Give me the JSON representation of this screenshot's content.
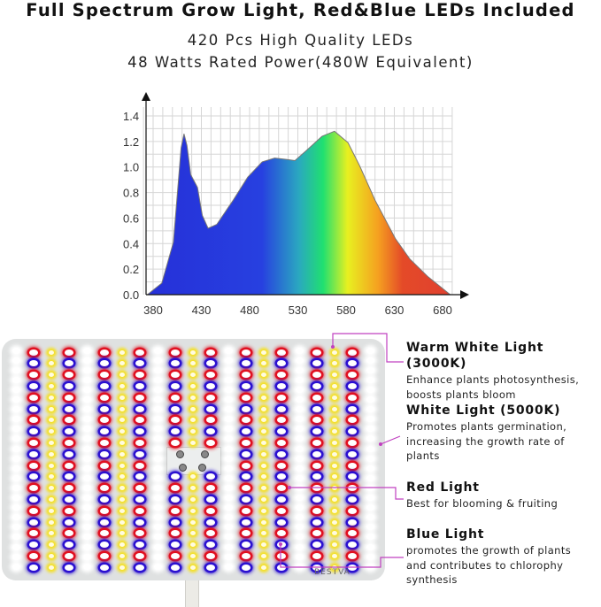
{
  "header": {
    "title": "Full Spectrum Grow Light, Red&Blue LEDs Included",
    "line1": "420 Pcs High Quality LEDs",
    "line2": "48 Watts Rated Power(480W Equivalent)"
  },
  "chart_data": {
    "type": "area",
    "title": "",
    "xlabel": "",
    "ylabel": "",
    "xlim": [
      380,
      680
    ],
    "ylim": [
      0,
      1.4
    ],
    "grid": true,
    "x_ticks": [
      "380",
      "430",
      "480",
      "530",
      "580",
      "630",
      "680"
    ],
    "y_ticks": [
      "0.0",
      "0.2",
      "0.4",
      "0.6",
      "0.8",
      "1.0",
      "1.2",
      "1.4"
    ],
    "fill": "spectrum gradient (blue → cyan → green → yellow → orange → red)",
    "series": [
      {
        "x": [
          374,
          389,
          401,
          409,
          412,
          415,
          419,
          426,
          431,
          437,
          446,
          463,
          478,
          493,
          506,
          518,
          527,
          539,
          555,
          568,
          582,
          594,
          610,
          631,
          646,
          665,
          688
        ],
        "y": [
          0,
          0.09,
          0.41,
          1.15,
          1.26,
          1.17,
          0.94,
          0.84,
          0.62,
          0.52,
          0.55,
          0.74,
          0.92,
          1.04,
          1.07,
          1.06,
          1.05,
          1.13,
          1.24,
          1.28,
          1.19,
          1.01,
          0.74,
          0.44,
          0.28,
          0.14,
          0
        ]
      }
    ]
  },
  "panel": {
    "logo": "BESTVA",
    "led_colors": {
      "red": "#e01020",
      "blue": "#2a10d0",
      "yellow": "#f5e020",
      "white": "#ffffff"
    }
  },
  "labels": [
    {
      "title": "Warm White Light (3000K)",
      "lines": [
        "Enhance plants photosynthesis,",
        "boosts plants bloom"
      ]
    },
    {
      "title": "White Light (5000K)",
      "lines": [
        "Promotes plants germination,",
        "increasing the growth rate of",
        "plants"
      ]
    },
    {
      "title": "Red Light",
      "lines": [
        "Best for blooming & fruiting"
      ]
    },
    {
      "title": "Blue Light",
      "lines": [
        "promotes the growth of plants",
        "and contributes to chlorophy",
        "synthesis"
      ]
    }
  ],
  "accent": "#c040c0"
}
